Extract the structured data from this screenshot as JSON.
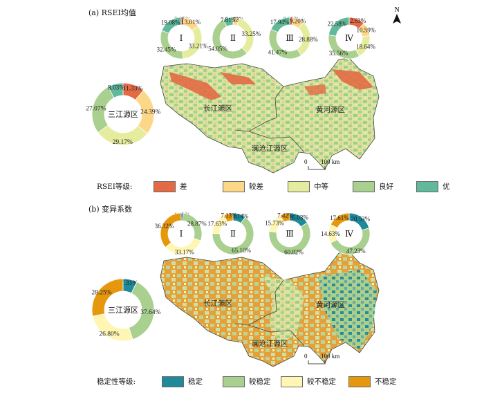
{
  "panels": [
    {
      "title": "(a) RSEI均值",
      "legend_title": "RSEI等级:",
      "classes": [
        {
          "label": "差",
          "color": "#e36a44"
        },
        {
          "label": "较差",
          "color": "#fdd788"
        },
        {
          "label": "中等",
          "color": "#e6ec9e"
        },
        {
          "label": "良好",
          "color": "#a9d08e"
        },
        {
          "label": "优",
          "color": "#5fb99a"
        }
      ],
      "big_donut": {
        "label": "三江源区",
        "values": [
          11.33,
          24.39,
          29.17,
          27.07,
          8.03
        ],
        "labels": [
          "11.33%",
          "24.39%",
          "29.17%",
          "27.07%",
          "8.03%"
        ]
      },
      "small_donuts": [
        {
          "roman": "Ⅰ",
          "values": [
            2.25,
            13.01,
            33.21,
            32.45,
            19.08
          ],
          "labels": [
            "2.25%",
            "13.01%",
            "33.21%",
            "32.45%",
            "19.08%"
          ]
        },
        {
          "roman": "Ⅱ",
          "values": [
            0.16,
            4.73,
            33.25,
            54.05,
            7.81
          ],
          "labels": [
            "0.16%",
            "4.73%",
            "33.25%",
            "54.05%",
            "7.81%"
          ]
        },
        {
          "roman": "Ⅲ",
          "values": [
            2.52,
            9.2,
            28.88,
            41.47,
            17.94
          ],
          "labels": [
            "2.52%",
            "9.20%",
            "28.88%",
            "41.47%",
            "17.94%"
          ]
        },
        {
          "roman": "Ⅳ",
          "values": [
            12.63,
            10.59,
            18.64,
            35.56,
            22.58
          ],
          "labels": [
            "12.63%",
            "10.59%",
            "18.64%",
            "35.56%",
            "22.58%"
          ]
        }
      ]
    },
    {
      "title": "(b) 变异系数",
      "legend_title": "稳定性等级:",
      "classes": [
        {
          "label": "稳定",
          "color": "#1e8a9a"
        },
        {
          "label": "较稳定",
          "color": "#a9d08e"
        },
        {
          "label": "较不稳定",
          "color": "#fff6b3"
        },
        {
          "label": "不稳定",
          "color": "#e5980e"
        }
      ],
      "big_donut": {
        "label": "三江源区",
        "values": [
          7.31,
          37.64,
          26.8,
          28.25
        ],
        "labels": [
          "7.31%",
          "37.64%",
          "26.80%",
          "28.25%"
        ]
      },
      "small_donuts": [
        {
          "roman": "Ⅰ",
          "values": [
            1.63,
            28.87,
            33.17,
            36.32
          ],
          "labels": [
            "1.63%",
            "28.87%",
            "33.17%",
            "36.32%"
          ]
        },
        {
          "roman": "Ⅱ",
          "values": [
            10.14,
            65.1,
            17.63,
            7.13
          ],
          "labels": [
            "10.14%",
            "65.10%",
            "17.63%",
            "7.13%"
          ]
        },
        {
          "roman": "Ⅲ",
          "values": [
            16.03,
            60.82,
            15.73,
            7.42
          ],
          "labels": [
            "16.03%",
            "60.82%",
            "15.73%",
            "7.42%"
          ]
        },
        {
          "roman": "Ⅳ",
          "values": [
            20.53,
            47.23,
            14.63,
            17.61
          ],
          "labels": [
            "20.53%",
            "47.23%",
            "14.63%",
            "17.61%"
          ]
        }
      ]
    }
  ],
  "regions": [
    "长江源区",
    "黄河源区",
    "澜沧江源区"
  ],
  "scale": {
    "zero": "0",
    "distance": "100 km"
  },
  "north_label": "N"
}
